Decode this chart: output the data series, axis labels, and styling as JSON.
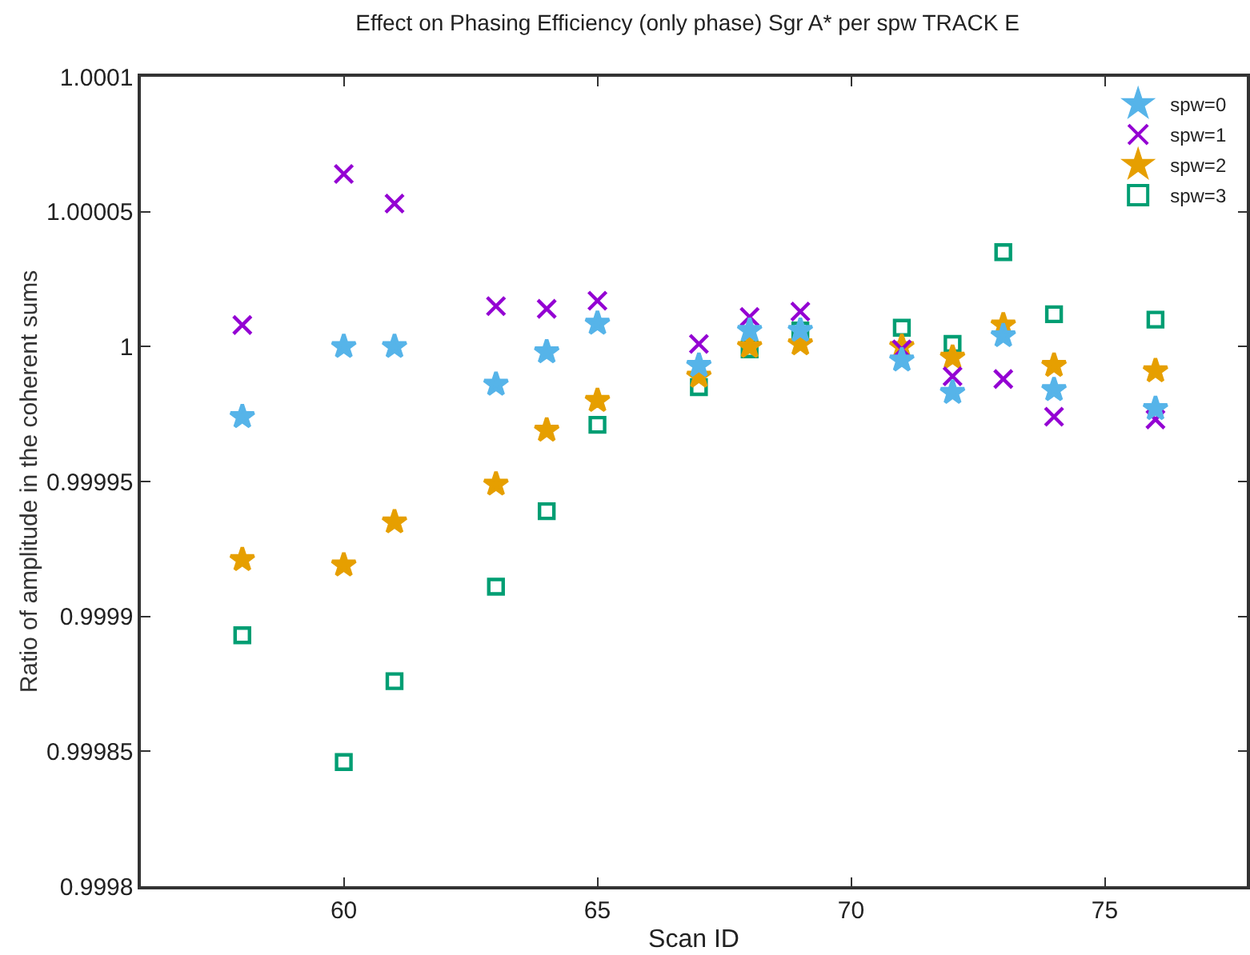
{
  "chart_data": {
    "type": "scatter",
    "title": "Effect on Phasing Efficiency (only phase) Sgr A* per spw TRACK E",
    "xlabel": "Scan ID",
    "ylabel": "Ratio of amplitude in the coherent sums",
    "x": [
      58,
      60,
      61,
      63,
      64,
      65,
      67,
      68,
      69,
      71,
      72,
      73,
      74,
      76
    ],
    "series": [
      {
        "name": "spw=0",
        "color": "#56b4e9",
        "marker": "star",
        "values": [
          0.999974,
          1.0,
          1.0,
          0.999986,
          0.999998,
          1.0000086,
          0.999993,
          1.000006,
          1.000006,
          0.999995,
          0.999983,
          1.000004,
          0.999984,
          0.999977
        ]
      },
      {
        "name": "spw=1",
        "color": "#9400d3",
        "marker": "cross",
        "values": [
          1.000008,
          1.000064,
          1.000053,
          1.000015,
          1.000014,
          1.000017,
          1.000001,
          1.000011,
          1.000013,
          0.999999,
          0.999989,
          0.999988,
          0.999974,
          0.999973
        ]
      },
      {
        "name": "spw=2",
        "color": "#e69f00",
        "marker": "star",
        "values": [
          0.999921,
          0.999919,
          0.999935,
          0.999949,
          0.999969,
          0.99998,
          0.999989,
          1.0,
          1.000001,
          1.0,
          0.999996,
          1.000008,
          0.999993,
          0.999991
        ]
      },
      {
        "name": "spw=3",
        "color": "#009e73",
        "marker": "square",
        "values": [
          0.999893,
          0.999846,
          0.999876,
          0.999911,
          0.999939,
          0.999971,
          0.999985,
          0.999999,
          1.000006,
          1.000007,
          1.000001,
          1.000035,
          1.000012,
          1.00001
        ]
      }
    ],
    "xlim": [
      56,
      77.8
    ],
    "xticks": [
      60,
      65,
      70,
      75
    ],
    "ylim": [
      0.9998,
      1.0001
    ],
    "yticks": [
      0.9998,
      0.99985,
      0.9999,
      0.99995,
      1,
      1.00005,
      1.0001
    ],
    "grid": false,
    "legend": "top right"
  }
}
